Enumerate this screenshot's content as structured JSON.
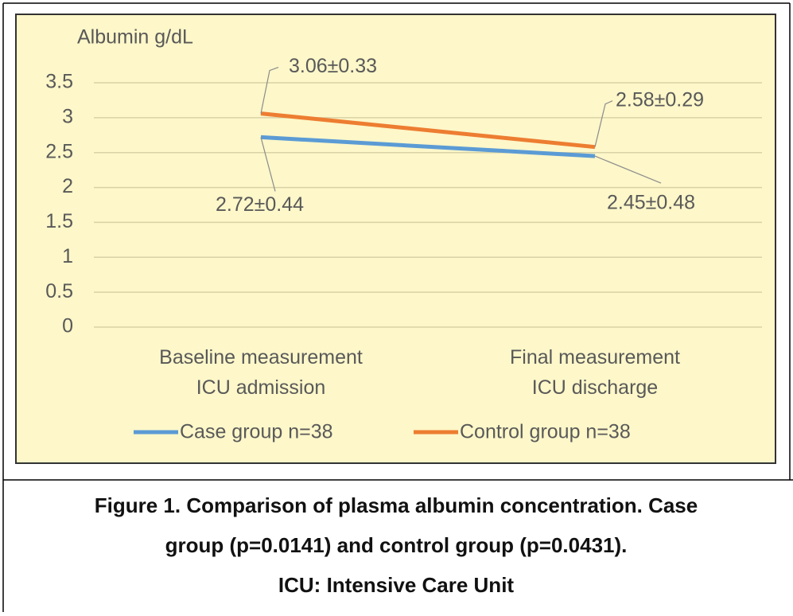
{
  "chart_data": {
    "type": "line",
    "y_axis_label": "Albumin g/dL",
    "categories": [
      "Baseline measurement\nICU admission",
      "Final measurement\nICU discharge"
    ],
    "series": [
      {
        "name": "Case group n=38",
        "color": "#5b9bd5",
        "values": [
          2.72,
          2.45
        ],
        "value_labels": [
          "2.72±0.44",
          "2.45±0.48"
        ]
      },
      {
        "name": "Control group n=38",
        "color": "#ed7d31",
        "values": [
          3.06,
          2.58
        ],
        "value_labels": [
          "3.06±0.33",
          "2.58±0.29"
        ]
      }
    ],
    "ylim": [
      0,
      3.5
    ],
    "yticks": [
      0,
      0.5,
      1,
      1.5,
      2,
      2.5,
      3,
      3.5
    ],
    "grid": true,
    "legend": "bottom"
  },
  "caption": [
    "Figure 1. Comparison of plasma albumin concentration. Case",
    "group (p=0.0141) and control group (p=0.0431).",
    "ICU: Intensive Care Unit"
  ]
}
